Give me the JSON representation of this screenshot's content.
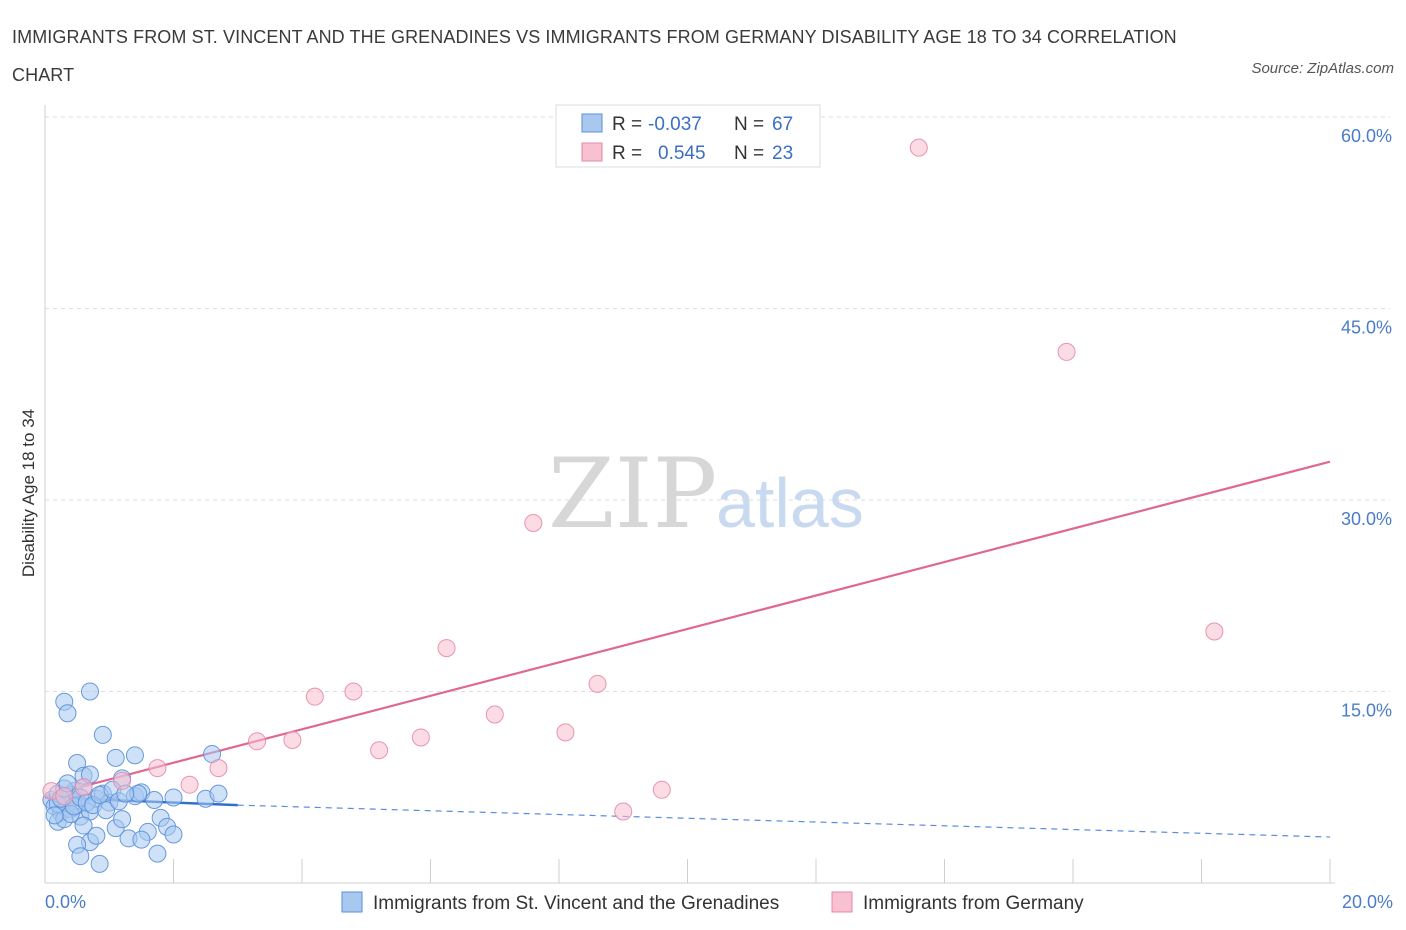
{
  "header": {
    "title": "IMMIGRANTS FROM ST. VINCENT AND THE GRENADINES VS IMMIGRANTS FROM GERMANY DISABILITY AGE 18 TO 34 CORRELATION CHART",
    "source": "Source: ZipAtlas.com"
  },
  "watermark": {
    "zip": "ZIP",
    "atlas": "atlas"
  },
  "legend": {
    "r_label": "R =",
    "n_label": "N =",
    "series1": {
      "r": "-0.037",
      "n": "67"
    },
    "series2": {
      "r": "0.545",
      "n": "23"
    }
  },
  "colors": {
    "blue_fill": "#a8c8f0",
    "blue_stroke": "#5a8fd8",
    "blue_line": "#2f6fd0",
    "pink_fill": "#f8c0d0",
    "pink_stroke": "#e58aa8",
    "pink_line": "#e06890",
    "tick_text": "#4a7cc9",
    "grid": "#dddddd"
  },
  "chart_data": {
    "type": "scatter",
    "title": "IMMIGRANTS FROM ST. VINCENT AND THE GRENADINES VS IMMIGRANTS FROM GERMANY DISABILITY AGE 18 TO 34 CORRELATION CHART",
    "xlabel": "",
    "ylabel": "Disability Age 18 to 34",
    "xlim": [
      0,
      20
    ],
    "ylim": [
      0,
      60
    ],
    "x_tick_labels": [
      "0.0%",
      "20.0%"
    ],
    "y_ticks": [
      15,
      30,
      45,
      60
    ],
    "y_tick_labels": [
      "15.0%",
      "30.0%",
      "45.0%",
      "60.0%"
    ],
    "grid": "horizontal dashed",
    "legend_position": "top-center",
    "series": [
      {
        "name": "Immigrants from St. Vincent and the Grenadines",
        "color": "blue",
        "R": -0.037,
        "N": 67,
        "trend": {
          "solid": [
            [
              0,
              6.7
            ],
            [
              3,
              6.1
            ]
          ],
          "dashed": [
            [
              3,
              6.1
            ],
            [
              20,
              3.6
            ]
          ]
        },
        "points": [
          [
            0.1,
            6.5
          ],
          [
            0.15,
            6.0
          ],
          [
            0.2,
            7.0
          ],
          [
            0.25,
            5.5
          ],
          [
            0.3,
            6.8
          ],
          [
            0.35,
            6.2
          ],
          [
            0.4,
            5.8
          ],
          [
            0.45,
            7.2
          ],
          [
            0.5,
            6.4
          ],
          [
            0.55,
            5.2
          ],
          [
            0.6,
            7.5
          ],
          [
            0.2,
            4.8
          ],
          [
            0.3,
            5.0
          ],
          [
            0.4,
            6.9
          ],
          [
            0.5,
            6.1
          ],
          [
            0.7,
            5.6
          ],
          [
            0.8,
            6.6
          ],
          [
            0.9,
            7.0
          ],
          [
            1.0,
            6.3
          ],
          [
            0.6,
            4.5
          ],
          [
            0.7,
            3.2
          ],
          [
            0.8,
            3.7
          ],
          [
            1.1,
            4.3
          ],
          [
            1.2,
            5.0
          ],
          [
            1.3,
            3.5
          ],
          [
            1.4,
            6.8
          ],
          [
            1.5,
            7.1
          ],
          [
            1.6,
            4.0
          ],
          [
            1.7,
            6.5
          ],
          [
            1.8,
            5.1
          ],
          [
            1.9,
            4.4
          ],
          [
            2.0,
            6.7
          ],
          [
            2.5,
            6.6
          ],
          [
            2.7,
            7.0
          ],
          [
            0.5,
            3.0
          ],
          [
            0.55,
            2.1
          ],
          [
            0.85,
            1.5
          ],
          [
            1.75,
            2.3
          ],
          [
            1.5,
            3.4
          ],
          [
            2.0,
            3.8
          ],
          [
            0.3,
            14.2
          ],
          [
            0.35,
            13.3
          ],
          [
            0.7,
            15.0
          ],
          [
            0.9,
            11.6
          ],
          [
            0.5,
            9.4
          ],
          [
            1.1,
            9.8
          ],
          [
            1.4,
            10.0
          ],
          [
            0.6,
            8.4
          ],
          [
            0.7,
            8.5
          ],
          [
            1.2,
            8.2
          ],
          [
            1.45,
            7.0
          ],
          [
            2.6,
            10.1
          ],
          [
            0.2,
            6.2
          ],
          [
            0.25,
            6.6
          ],
          [
            0.3,
            7.4
          ],
          [
            0.4,
            5.4
          ],
          [
            0.45,
            6.0
          ],
          [
            0.55,
            6.7
          ],
          [
            0.65,
            6.3
          ],
          [
            0.75,
            6.1
          ],
          [
            0.85,
            6.9
          ],
          [
            0.95,
            5.7
          ],
          [
            1.05,
            7.3
          ],
          [
            1.15,
            6.4
          ],
          [
            1.25,
            7.0
          ],
          [
            0.15,
            5.3
          ],
          [
            0.35,
            7.8
          ]
        ]
      },
      {
        "name": "Immigrants from Germany",
        "color": "pink",
        "R": 0.545,
        "N": 23,
        "trend": {
          "solid": [
            [
              0,
              6.8
            ],
            [
              20,
              33.0
            ]
          ]
        },
        "points": [
          [
            0.1,
            7.2
          ],
          [
            0.3,
            6.8
          ],
          [
            0.6,
            7.5
          ],
          [
            1.2,
            8.0
          ],
          [
            1.75,
            9.0
          ],
          [
            2.25,
            7.7
          ],
          [
            2.7,
            9.0
          ],
          [
            3.3,
            11.1
          ],
          [
            3.85,
            11.2
          ],
          [
            4.2,
            14.6
          ],
          [
            4.8,
            15.0
          ],
          [
            5.2,
            10.4
          ],
          [
            5.85,
            11.4
          ],
          [
            6.25,
            18.4
          ],
          [
            7.0,
            13.2
          ],
          [
            7.6,
            28.2
          ],
          [
            8.1,
            11.8
          ],
          [
            8.6,
            15.6
          ],
          [
            9.0,
            5.6
          ],
          [
            9.6,
            7.3
          ],
          [
            13.6,
            57.6
          ],
          [
            15.9,
            41.6
          ],
          [
            18.2,
            19.7
          ]
        ]
      }
    ]
  }
}
